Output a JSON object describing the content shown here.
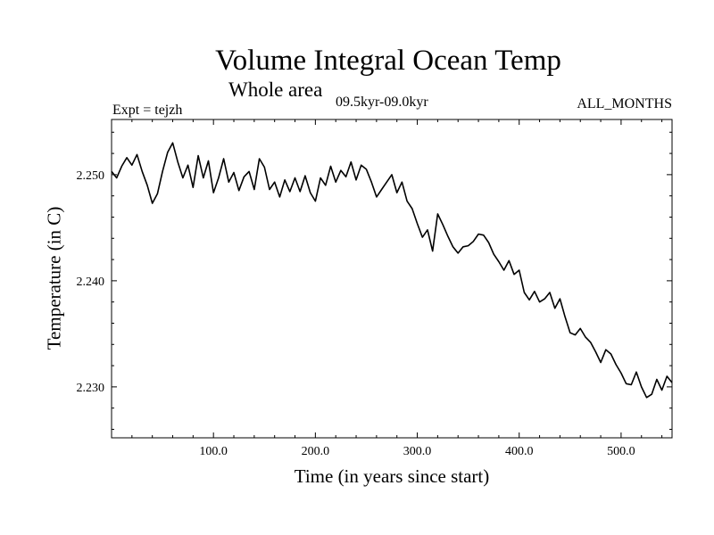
{
  "chart_data": {
    "type": "line",
    "title": "Volume Integral Ocean Temp",
    "subtitle": "Whole area",
    "experiment_label": "Expt = tejzh",
    "period_label": "09.5kyr-09.0kyr",
    "months_label": "ALL_MONTHS",
    "xlabel": "Time (in years since start)",
    "ylabel": "Temperature (in C)",
    "xlim": [
      0,
      550
    ],
    "ylim": [
      2.2252,
      2.2552
    ],
    "x_ticks": [
      100,
      200,
      300,
      400,
      500
    ],
    "x_tick_labels": [
      "100.0",
      "200.0",
      "300.0",
      "400.0",
      "500.0"
    ],
    "y_ticks": [
      2.23,
      2.24,
      2.25
    ],
    "y_tick_labels": [
      "2.230",
      "2.240",
      "2.250"
    ],
    "grid": false,
    "series": [
      {
        "name": "Volume Integral Ocean Temp",
        "x": [
          0,
          5,
          10,
          15,
          20,
          25,
          30,
          35,
          40,
          45,
          50,
          55,
          60,
          65,
          70,
          75,
          80,
          85,
          90,
          95,
          100,
          105,
          110,
          115,
          120,
          125,
          130,
          135,
          140,
          145,
          150,
          155,
          160,
          165,
          170,
          175,
          180,
          185,
          190,
          195,
          200,
          205,
          210,
          215,
          220,
          225,
          230,
          235,
          240,
          245,
          250,
          255,
          260,
          265,
          270,
          275,
          280,
          285,
          290,
          295,
          300,
          305,
          310,
          315,
          320,
          325,
          330,
          335,
          340,
          345,
          350,
          355,
          360,
          365,
          370,
          375,
          380,
          385,
          390,
          395,
          400,
          405,
          410,
          415,
          420,
          425,
          430,
          435,
          440,
          445,
          450,
          455,
          460,
          465,
          470,
          475,
          480,
          485,
          490,
          495,
          500,
          505,
          510,
          515,
          520,
          525,
          530,
          535,
          540,
          545,
          550
        ],
        "values": [
          2.2503,
          2.2497,
          2.2508,
          2.2516,
          2.2509,
          2.2519,
          2.2503,
          2.249,
          2.2473,
          2.2482,
          2.2503,
          2.2521,
          2.253,
          2.2512,
          2.2497,
          2.2509,
          2.2488,
          2.2518,
          2.2497,
          2.2513,
          2.2483,
          2.2497,
          2.2515,
          2.2493,
          2.2502,
          2.2485,
          2.2498,
          2.2503,
          2.2486,
          2.2515,
          2.2507,
          2.2486,
          2.2493,
          2.2479,
          2.2495,
          2.2484,
          2.2497,
          2.2484,
          2.2499,
          2.2483,
          2.2475,
          2.2497,
          2.249,
          2.2508,
          2.2493,
          2.2504,
          2.2498,
          2.2512,
          2.2495,
          2.2509,
          2.2505,
          2.2493,
          2.2479,
          2.2486,
          2.2493,
          2.25,
          2.2483,
          2.2493,
          2.2475,
          2.2468,
          2.2454,
          2.2441,
          2.2448,
          2.2428,
          2.2463,
          2.2453,
          2.2442,
          2.2432,
          2.2426,
          2.2432,
          2.2433,
          2.2437,
          2.2444,
          2.2443,
          2.2436,
          2.2425,
          2.2418,
          2.241,
          2.2419,
          2.2406,
          2.241,
          2.2389,
          2.2382,
          2.239,
          2.238,
          2.2383,
          2.2389,
          2.2374,
          2.2383,
          2.2366,
          2.2351,
          2.2349,
          2.2355,
          2.2347,
          2.2342,
          2.2333,
          2.2323,
          2.2335,
          2.2331,
          2.2321,
          2.2313,
          2.2303,
          2.2302,
          2.2314,
          2.23,
          2.229,
          2.2293,
          2.2307,
          2.2297,
          2.231,
          2.2304
        ]
      }
    ]
  }
}
